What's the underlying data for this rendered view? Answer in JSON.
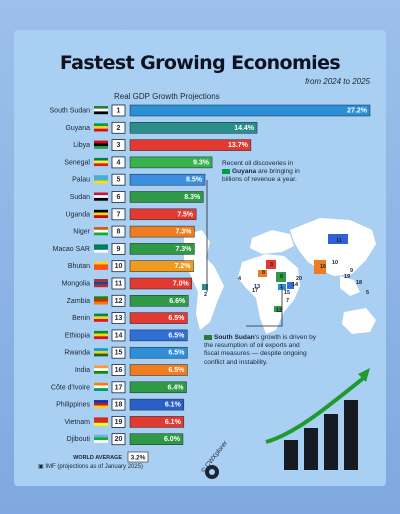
{
  "header": {
    "title": "Fastest Growing Economies",
    "subtitle": "from 2024 to 2025",
    "chart_heading": "Real GDP Growth Projections"
  },
  "callouts": {
    "guyana_line1": "Recent oil discoveries in",
    "guyana_name": "Guyana",
    "guyana_rest": " are bringing in",
    "guyana_line3": "billions of revenue a year.",
    "sudan_name": "South Sudan",
    "sudan_rest": "'s growth is driven by",
    "sudan_line2": "the resumption of oil exports and",
    "sudan_line3": "fiscal measures — despite ongoing",
    "sudan_line4": "conflict and instability."
  },
  "footer": {
    "source": "IMF (projections as of January 2025)",
    "brand": "© CWXplorer",
    "world_average_label": "WORLD AVERAGE",
    "world_average_value": "3.2%"
  },
  "colors": {
    "title_text": "#0f1220",
    "map_land": "#ffffff",
    "arrow": "#1f9a2e",
    "bars_dark": "#161a22"
  },
  "chart_data": {
    "type": "bar",
    "orientation": "horizontal",
    "title": "Fastest Growing Economies",
    "subtitle": "from 2024 to 2025",
    "ylabel": "Real GDP Growth Projections",
    "value_unit": "%",
    "grid": false,
    "max_value": 27.2,
    "categories": [
      "South Sudan",
      "Guyana",
      "Libya",
      "Senegal",
      "Palau",
      "Sudan",
      "Uganda",
      "Niger",
      "Macao SAR",
      "Bhutan",
      "Mongolia",
      "Zambia",
      "Benin",
      "Ethiopia",
      "Rwanda",
      "India",
      "Côte d'Ivoire",
      "Philippines",
      "Vietnam",
      "Djibouti"
    ],
    "ranks": [
      "1",
      "2",
      "3",
      "4",
      "5",
      "6",
      "7",
      "8",
      "9",
      "10",
      "11",
      "12",
      "13",
      "14",
      "15",
      "16",
      "17",
      "18",
      "19",
      "20"
    ],
    "values": [
      27.2,
      14.4,
      13.7,
      9.3,
      8.5,
      8.3,
      7.5,
      7.3,
      7.3,
      7.2,
      7.0,
      6.6,
      6.5,
      6.5,
      6.5,
      6.5,
      6.4,
      6.1,
      6.1,
      6.0
    ],
    "value_labels": [
      "27.2%",
      "14.4%",
      "13.7%",
      "9.3%",
      "8.5%",
      "8.3%",
      "7.5%",
      "7.3%",
      "7.3%",
      "7.2%",
      "7.0%",
      "6.6%",
      "6.5%",
      "6.5%",
      "6.5%",
      "6.5%",
      "6.4%",
      "6.1%",
      "6.1%",
      "6.0%"
    ],
    "bar_colors": [
      "#2b8fd6",
      "#2a8f8a",
      "#e23a30",
      "#37b24d",
      "#3a8fe0",
      "#2f9a45",
      "#e23a30",
      "#ef7d1f",
      "#2f9a45",
      "#ef9b1f",
      "#e23a30",
      "#2f9a45",
      "#e23a30",
      "#2f6fd6",
      "#2f8fd6",
      "#ef7d1f",
      "#2f9a45",
      "#2b5fc8",
      "#e23a30",
      "#2f9a45"
    ],
    "flags": [
      [
        "#2e7d32",
        "#ffffff",
        "#000000"
      ],
      [
        "#009e49",
        "#fcd116",
        "#ce1126"
      ],
      [
        "#e70013",
        "#000000",
        "#239e46"
      ],
      [
        "#00853f",
        "#fdef42",
        "#e31b23"
      ],
      [
        "#4aadd6",
        "#4aadd6",
        "#ffde00"
      ],
      [
        "#d21034",
        "#ffffff",
        "#000000"
      ],
      [
        "#000000",
        "#fcdc04",
        "#d90000"
      ],
      [
        "#e05206",
        "#ffffff",
        "#0db02b"
      ],
      [
        "#00785e",
        "#00785e",
        "#ffffff"
      ],
      [
        "#ffd520",
        "#ff4e12",
        "#ff4e12"
      ],
      [
        "#c4272f",
        "#015197",
        "#c4272f"
      ],
      [
        "#198a00",
        "#de2010",
        "#ef7d00"
      ],
      [
        "#008751",
        "#fcd116",
        "#e8112d"
      ],
      [
        "#078930",
        "#fcdd09",
        "#da121a"
      ],
      [
        "#00a1de",
        "#fad201",
        "#20603d"
      ],
      [
        "#ff9933",
        "#ffffff",
        "#138808"
      ],
      [
        "#f77f00",
        "#ffffff",
        "#009e60"
      ],
      [
        "#0038a8",
        "#ce1126",
        "#fcd116"
      ],
      [
        "#da251d",
        "#da251d",
        "#ffff00"
      ],
      [
        "#6ab2e7",
        "#12ad2b",
        "#ffffff"
      ]
    ],
    "world_average": 3.2
  },
  "map_labels": [
    "1",
    "2",
    "3",
    "4",
    "5",
    "6",
    "7",
    "8",
    "9",
    "10",
    "11",
    "12",
    "13",
    "14",
    "15",
    "16",
    "17",
    "18",
    "19",
    "20"
  ]
}
